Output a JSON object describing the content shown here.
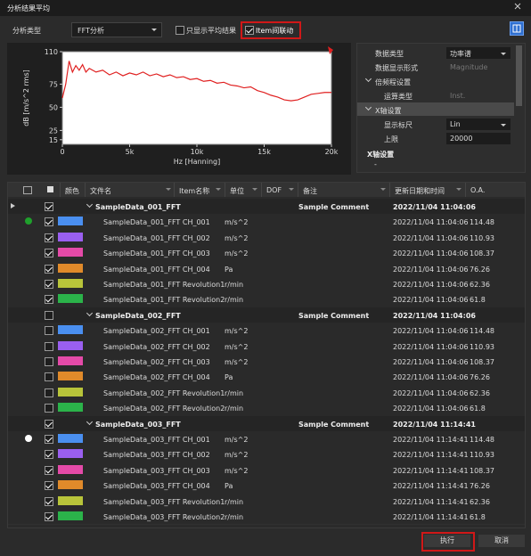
{
  "window": {
    "title": "分析结果平均"
  },
  "toolbar": {
    "analysis_type_label": "分析类型",
    "analysis_type": "FFT分析",
    "average_only": {
      "label": "只显示平均结果",
      "checked": false
    },
    "item_link": {
      "label": "Item间联动",
      "checked": true
    }
  },
  "chart_data": {
    "type": "line",
    "x_label": "Hz [Hanning]",
    "y_label": "dB [m/s^2 rms]",
    "x": [
      0,
      250,
      500,
      750,
      1000,
      1250,
      1500,
      1750,
      2000,
      2500,
      3000,
      3500,
      4000,
      4500,
      5000,
      5500,
      6000,
      6500,
      7000,
      7500,
      8000,
      8500,
      9000,
      9500,
      10000,
      10500,
      11000,
      11500,
      12000,
      12500,
      13000,
      13500,
      14000,
      14500,
      15000,
      15500,
      16000,
      16500,
      17000,
      17500,
      18000,
      18500,
      19000,
      19500,
      20000
    ],
    "series": [
      {
        "color": "#e02020",
        "values": [
          60,
          75,
          100,
          88,
          95,
          90,
          96,
          88,
          92,
          88,
          90,
          85,
          88,
          84,
          87,
          85,
          88,
          84,
          86,
          83,
          85,
          82,
          83,
          80,
          81,
          78,
          79,
          76,
          77,
          74,
          73,
          71,
          72,
          68,
          66,
          63,
          61,
          58,
          57,
          58,
          61,
          64,
          65,
          66,
          66
        ]
      }
    ],
    "xlim": [
      0,
      20000
    ],
    "ylim": [
      10,
      110
    ],
    "xticks": [
      0,
      {
        "value": 5000,
        "label": "5k"
      },
      {
        "value": 10000,
        "label": "10k"
      },
      {
        "value": 15000,
        "label": "15k"
      },
      {
        "value": 20000,
        "label": "20k"
      }
    ],
    "yticks": [
      110,
      75,
      50,
      25,
      15
    ]
  },
  "properties": {
    "rows": [
      {
        "label": "数据类型",
        "value": "功率谱",
        "kind": "dropdown"
      },
      {
        "label": "数据显示形式",
        "value": "Magnitude",
        "kind": "disabled"
      },
      {
        "label": "倍频程设置",
        "kind": "group"
      },
      {
        "label": "运算类型",
        "value": "Inst.",
        "kind": "disabled"
      },
      {
        "label": "X轴设置",
        "kind": "group-selected"
      },
      {
        "label": "显示标尺",
        "value": "Lin",
        "kind": "dropdown"
      },
      {
        "label": "上限",
        "value": "20000",
        "kind": "text"
      }
    ],
    "section_title": "X轴设置",
    "section_value": "-"
  },
  "table": {
    "headers": [
      "颜色",
      "文件名",
      "Item名称",
      "单位",
      "DOF",
      "备注",
      "更新日期和时间",
      "O.A."
    ],
    "groups": [
      {
        "name": "SampleData_001_FFT",
        "comment": "Sample Comment",
        "date": "2022/11/04 11:04:06",
        "checked": true,
        "current": true,
        "rows": [
          {
            "file": "SampleData_001_FFT CH_001",
            "unit": "m/s^2",
            "date": "2022/11/04 11:04:06",
            "oa": "114.48",
            "color": "#4a8ff0",
            "checked": true,
            "indicator": "#1fa02c"
          },
          {
            "file": "SampleData_001_FFT CH_002",
            "unit": "m/s^2",
            "date": "2022/11/04 11:04:06",
            "oa": "110.93",
            "color": "#9a5ff0",
            "checked": true
          },
          {
            "file": "SampleData_001_FFT CH_003",
            "unit": "m/s^2",
            "date": "2022/11/04 11:04:06",
            "oa": "108.37",
            "color": "#e44aa8",
            "checked": true
          },
          {
            "file": "SampleData_001_FFT CH_004",
            "unit": "Pa",
            "date": "2022/11/04 11:04:06",
            "oa": "76.26",
            "color": "#e08a2a",
            "checked": true
          },
          {
            "file": "SampleData_001_FFT Revolution1",
            "unit": "r/min",
            "date": "2022/11/04 11:04:06",
            "oa": "62.36",
            "color": "#b8c43a",
            "checked": true
          },
          {
            "file": "SampleData_001_FFT Revolution2",
            "unit": "r/min",
            "date": "2022/11/04 11:04:06",
            "oa": "61.8",
            "color": "#2bb34a",
            "checked": true
          }
        ]
      },
      {
        "name": "SampleData_002_FFT",
        "comment": "Sample Comment",
        "date": "2022/11/04 11:04:06",
        "checked": false,
        "rows": [
          {
            "file": "SampleData_002_FFT CH_001",
            "unit": "m/s^2",
            "date": "2022/11/04 11:04:06",
            "oa": "114.48",
            "color": "#4a8ff0",
            "checked": false
          },
          {
            "file": "SampleData_002_FFT CH_002",
            "unit": "m/s^2",
            "date": "2022/11/04 11:04:06",
            "oa": "110.93",
            "color": "#9a5ff0",
            "checked": false
          },
          {
            "file": "SampleData_002_FFT CH_003",
            "unit": "m/s^2",
            "date": "2022/11/04 11:04:06",
            "oa": "108.37",
            "color": "#e44aa8",
            "checked": false
          },
          {
            "file": "SampleData_002_FFT CH_004",
            "unit": "Pa",
            "date": "2022/11/04 11:04:06",
            "oa": "76.26",
            "color": "#e08a2a",
            "checked": false
          },
          {
            "file": "SampleData_002_FFT Revolution1",
            "unit": "r/min",
            "date": "2022/11/04 11:04:06",
            "oa": "62.36",
            "color": "#b8c43a",
            "checked": false
          },
          {
            "file": "SampleData_002_FFT Revolution2",
            "unit": "r/min",
            "date": "2022/11/04 11:04:06",
            "oa": "61.8",
            "color": "#2bb34a",
            "checked": false
          }
        ]
      },
      {
        "name": "SampleData_003_FFT",
        "comment": "Sample Comment",
        "date": "2022/11/04 11:14:41",
        "checked": true,
        "rows": [
          {
            "file": "SampleData_003_FFT CH_001",
            "unit": "m/s^2",
            "date": "2022/11/04 11:14:41",
            "oa": "114.48",
            "color": "#4a8ff0",
            "checked": true,
            "indicator": "#ffffff"
          },
          {
            "file": "SampleData_003_FFT CH_002",
            "unit": "m/s^2",
            "date": "2022/11/04 11:14:41",
            "oa": "110.93",
            "color": "#9a5ff0",
            "checked": true
          },
          {
            "file": "SampleData_003_FFT CH_003",
            "unit": "m/s^2",
            "date": "2022/11/04 11:14:41",
            "oa": "108.37",
            "color": "#e44aa8",
            "checked": true
          },
          {
            "file": "SampleData_003_FFT CH_004",
            "unit": "Pa",
            "date": "2022/11/04 11:14:41",
            "oa": "76.26",
            "color": "#e08a2a",
            "checked": true
          },
          {
            "file": "SampleData_003_FFT Revolution1",
            "unit": "r/min",
            "date": "2022/11/04 11:14:41",
            "oa": "62.36",
            "color": "#b8c43a",
            "checked": true
          },
          {
            "file": "SampleData_003_FFT Revolution2",
            "unit": "r/min",
            "date": "2022/11/04 11:14:41",
            "oa": "61.8",
            "color": "#2bb34a",
            "checked": true
          }
        ]
      }
    ]
  },
  "buttons": {
    "execute": "执行",
    "cancel": "取消"
  }
}
